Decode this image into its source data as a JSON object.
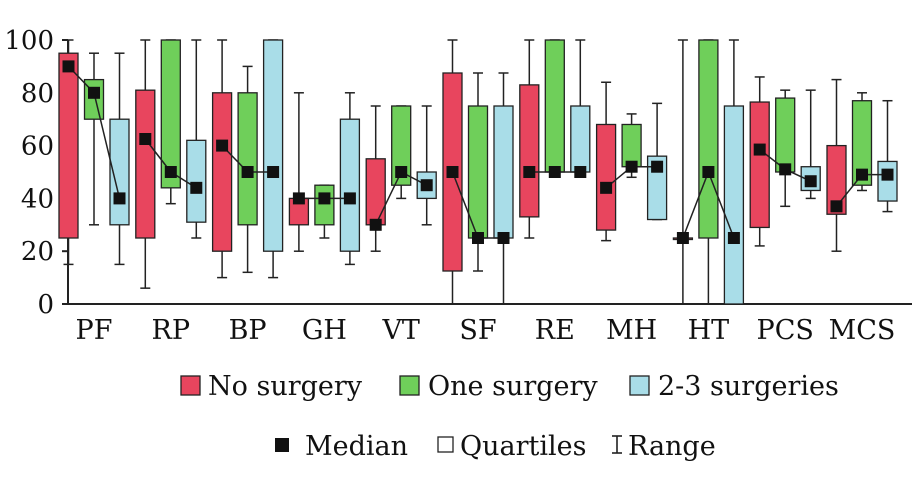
{
  "chart_data": {
    "type": "boxplot",
    "y_ticks": [
      "0",
      "20",
      "40",
      "60",
      "80",
      "100"
    ],
    "ylim": [
      0,
      100
    ],
    "categories": [
      "PF",
      "RP",
      "BP",
      "GH",
      "VT",
      "SF",
      "RE",
      "MH",
      "HT",
      "PCS",
      "MCS"
    ],
    "series": [
      {
        "name": "No surgery",
        "color": "#e8455e",
        "boxes": [
          {
            "min": 15,
            "q1": 25,
            "median": 90,
            "q3": 95,
            "max": 100
          },
          {
            "min": 6,
            "q1": 25,
            "median": 62.5,
            "q3": 81,
            "max": 100
          },
          {
            "min": 10,
            "q1": 20,
            "median": 60,
            "q3": 80,
            "max": 100
          },
          {
            "min": 20,
            "q1": 30,
            "median": 40,
            "q3": 40,
            "max": 80
          },
          {
            "min": 20,
            "q1": 30,
            "median": 30,
            "q3": 55,
            "max": 75
          },
          {
            "min": 0,
            "q1": 12.5,
            "median": 50,
            "q3": 87.5,
            "max": 100
          },
          {
            "min": 25,
            "q1": 33,
            "median": 50,
            "q3": 83,
            "max": 100
          },
          {
            "min": 24,
            "q1": 28,
            "median": 44,
            "q3": 68,
            "max": 84
          },
          {
            "min": 0,
            "q1": 25,
            "median": 25,
            "q3": 25,
            "max": 100
          },
          {
            "min": 22,
            "q1": 29,
            "median": 58.5,
            "q3": 76.5,
            "max": 86
          },
          {
            "min": 20,
            "q1": 34,
            "median": 37,
            "q3": 60,
            "max": 85
          }
        ]
      },
      {
        "name": "One surgery",
        "color": "#6fcf5a",
        "boxes": [
          {
            "min": 30,
            "q1": 70,
            "median": 80,
            "q3": 85,
            "max": 95
          },
          {
            "min": 38,
            "q1": 44,
            "median": 50,
            "q3": 100,
            "max": 100
          },
          {
            "min": 12,
            "q1": 30,
            "median": 50,
            "q3": 80,
            "max": 90
          },
          {
            "min": 25,
            "q1": 30,
            "median": 40,
            "q3": 45,
            "max": 45
          },
          {
            "min": 40,
            "q1": 45,
            "median": 50,
            "q3": 75,
            "max": 75
          },
          {
            "min": 12.5,
            "q1": 25,
            "median": 25,
            "q3": 75,
            "max": 87.5
          },
          {
            "min": 50,
            "q1": 50,
            "median": 50,
            "q3": 100,
            "max": 100
          },
          {
            "min": 48,
            "q1": 52,
            "median": 52,
            "q3": 68,
            "max": 72
          },
          {
            "min": 0,
            "q1": 25,
            "median": 50,
            "q3": 100,
            "max": 100
          },
          {
            "min": 37,
            "q1": 50,
            "median": 51,
            "q3": 78,
            "max": 81
          },
          {
            "min": 43,
            "q1": 45,
            "median": 49,
            "q3": 77,
            "max": 80
          }
        ]
      },
      {
        "name": "2-3 surgeries",
        "color": "#a9dde8",
        "boxes": [
          {
            "min": 15,
            "q1": 30,
            "median": 40,
            "q3": 70,
            "max": 95
          },
          {
            "min": 25,
            "q1": 31,
            "median": 44,
            "q3": 62,
            "max": 100
          },
          {
            "min": 10,
            "q1": 20,
            "median": 50,
            "q3": 100,
            "max": 100
          },
          {
            "min": 15,
            "q1": 20,
            "median": 40,
            "q3": 70,
            "max": 80
          },
          {
            "min": 30,
            "q1": 40,
            "median": 45,
            "q3": 50,
            "max": 75
          },
          {
            "min": 0,
            "q1": 25,
            "median": 25,
            "q3": 75,
            "max": 87.5
          },
          {
            "min": 50,
            "q1": 50,
            "median": 50,
            "q3": 75,
            "max": 100
          },
          {
            "min": 32,
            "q1": 32,
            "median": 52,
            "q3": 56,
            "max": 76
          },
          {
            "min": 0,
            "q1": 0,
            "median": 25,
            "q3": 75,
            "max": 100
          },
          {
            "min": 40,
            "q1": 43,
            "median": 46.5,
            "q3": 52,
            "max": 81
          },
          {
            "min": 35,
            "q1": 39,
            "median": 49,
            "q3": 54,
            "max": 77
          }
        ]
      }
    ],
    "legend": {
      "series_labels": [
        "No surgery",
        "One surgery",
        "2-3 surgeries"
      ],
      "median_label": "Median",
      "quartiles_label": "Quartiles",
      "range_label": "Range"
    },
    "colors": {
      "axis": "#222222",
      "median_marker": "#111111"
    }
  }
}
